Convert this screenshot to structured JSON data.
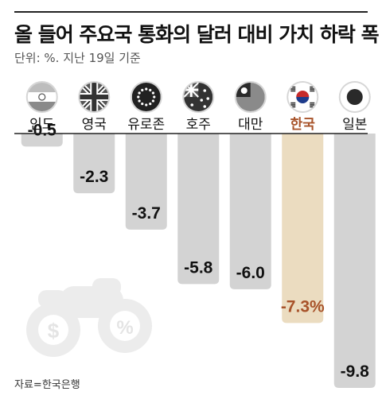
{
  "title": "올 들어 주요국 통화의 달러 대비 가치 하락 폭",
  "subtitle": "단위: %. 지난 19일 기준",
  "source": "자료=한국은행",
  "colors": {
    "bar": "#d3d3d3",
    "highlight_bar": "#ebdcc0",
    "highlight_text": "#a8532a",
    "text": "#111111"
  },
  "chart_data": {
    "type": "bar",
    "orientation": "vertical-negative",
    "categories": [
      "인도",
      "영국",
      "유로존",
      "호주",
      "대만",
      "한국",
      "일본"
    ],
    "icons": [
      "india-flag-icon",
      "uk-flag-icon",
      "eu-flag-icon",
      "australia-flag-icon",
      "taiwan-flag-icon",
      "korea-flag-icon",
      "japan-flag-icon"
    ],
    "values": [
      -0.5,
      -2.3,
      -3.7,
      -5.8,
      -6.0,
      -7.3,
      -9.8
    ],
    "value_labels": [
      "-0.5",
      "-2.3",
      "-3.7",
      "-5.8",
      "-6.0",
      "-7.3%",
      "-9.8"
    ],
    "highlight": "한국",
    "ylim": [
      -9.8,
      0
    ]
  }
}
